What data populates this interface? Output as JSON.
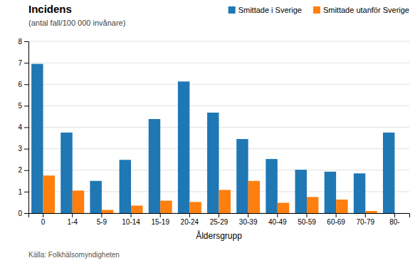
{
  "chart_data": {
    "type": "bar",
    "title": "Incidens",
    "subtitle": "(antal fall/100 000 invånare)",
    "xlabel": "Åldersgrupp",
    "annotations": [
      "Källa: Folkhälsomyndigheten"
    ],
    "categories": [
      "0",
      "1-4",
      "5-9",
      "10-14",
      "15-19",
      "20-24",
      "25-29",
      "30-39",
      "40-49",
      "50-59",
      "60-69",
      "70-79",
      "80-"
    ],
    "series": [
      {
        "name": "Smittade i Sverige",
        "values": [
          6.95,
          3.75,
          1.5,
          2.48,
          4.38,
          6.13,
          4.68,
          3.45,
          2.52,
          2.02,
          1.93,
          1.85,
          3.75
        ]
      },
      {
        "name": "Smittade utanför Sverige",
        "values": [
          1.75,
          1.05,
          0.15,
          0.35,
          0.58,
          0.52,
          1.08,
          1.5,
          0.48,
          0.75,
          0.63,
          0.1,
          0.0
        ]
      }
    ],
    "ylim": [
      0,
      8
    ],
    "yticks": [
      0,
      1,
      2,
      3,
      4,
      5,
      6,
      7,
      8
    ],
    "grid": true,
    "legend": "top"
  }
}
